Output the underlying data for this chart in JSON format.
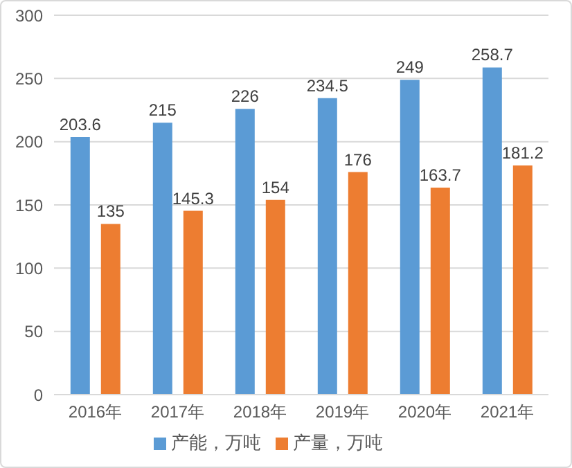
{
  "chart_data": {
    "type": "bar",
    "categories": [
      "2016年",
      "2017年",
      "2018年",
      "2019年",
      "2020年",
      "2021年"
    ],
    "series": [
      {
        "name": "产能，万吨",
        "color": "#5b9bd5",
        "values": [
          203.6,
          215,
          226,
          234.5,
          249,
          258.7
        ]
      },
      {
        "name": "产量，万吨",
        "color": "#ed7d31",
        "values": [
          135,
          145.3,
          154,
          176,
          163.7,
          181.2
        ]
      }
    ],
    "ylim": [
      0,
      300
    ],
    "yticks": [
      0,
      50,
      100,
      150,
      200,
      250,
      300
    ],
    "grid": "y",
    "legend": "bottom",
    "data_labels": true
  }
}
